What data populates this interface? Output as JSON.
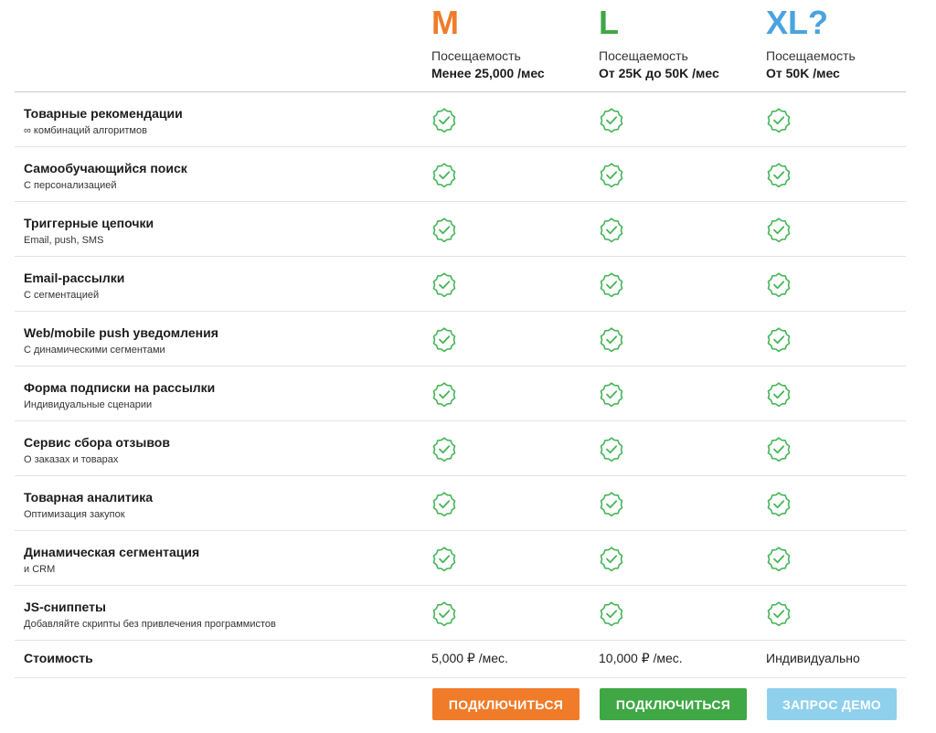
{
  "colors": {
    "m": "#f07c2a",
    "l": "#3fa845",
    "xl": "#4aa3df",
    "check": "#44b556",
    "btn_m": "#f07c2a",
    "btn_l": "#3fa845",
    "btn_xl": "#8fd0ec"
  },
  "plans": [
    {
      "name": "M",
      "label": "Посещаемость",
      "range": "Менее 25,000 /мес",
      "price": "5,000 ₽ /мес.",
      "button": "ПОДКЛЮЧИТЬСЯ"
    },
    {
      "name": "L",
      "label": "Посещаемость",
      "range": "От 25K до 50K /мес",
      "price": "10,000 ₽ /мес.",
      "button": "ПОДКЛЮЧИТЬСЯ"
    },
    {
      "name": "XL?",
      "label": "Посещаемость",
      "range": "От 50K /мес",
      "price": "Индивидуально",
      "button": "ЗАПРОС ДЕМО"
    }
  ],
  "features": [
    {
      "title": "Товарные рекомендации",
      "subtitle": "∞ комбинаций алгоритмов"
    },
    {
      "title": "Самообучающийся поиск",
      "subtitle": "С персонализацией"
    },
    {
      "title": "Триггерные цепочки",
      "subtitle": "Email, push, SMS"
    },
    {
      "title": "Email-рассылки",
      "subtitle": "С сегментацией"
    },
    {
      "title": "Web/mobile push уведомления",
      "subtitle": "С динамическими сегментами"
    },
    {
      "title": "Форма подписки на рассылки",
      "subtitle": "Индивидуальные сценарии"
    },
    {
      "title": "Сервис сбора отзывов",
      "subtitle": "О заказах и товарах"
    },
    {
      "title": "Товарная аналитика",
      "subtitle": "Оптимизация закупок"
    },
    {
      "title": "Динамическая сегментация",
      "subtitle": "и CRM"
    },
    {
      "title": "JS-сниппеты",
      "subtitle": "Добавляйте скрипты без привлечения программистов"
    }
  ],
  "price_label": "Стоимость",
  "icons": {
    "included": "check-badge-icon"
  }
}
